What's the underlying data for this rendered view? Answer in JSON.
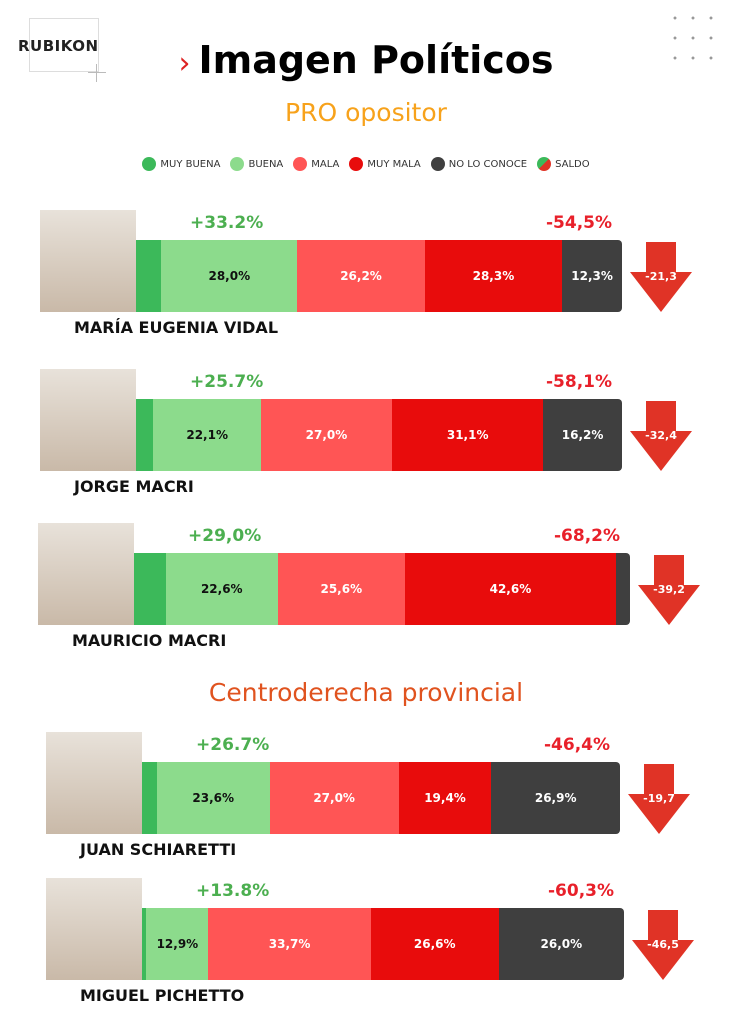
{
  "brand": "RUBIKON",
  "title": "Imagen Políticos",
  "sections": [
    {
      "label": "PRO opositor",
      "color": "#f7a21b"
    },
    {
      "label": "Centroderecha provincial",
      "color": "#e0531f"
    }
  ],
  "legend": [
    {
      "label": "MUY BUENA",
      "color": "#3cb95a"
    },
    {
      "label": "BUENA",
      "color": "#8cdb8c"
    },
    {
      "label": "MALA",
      "color": "#ff5555"
    },
    {
      "label": "MUY MALA",
      "color": "#e80c0c"
    },
    {
      "label": "NO LO CONOCE",
      "color": "#3f3f3f"
    },
    {
      "label": "SALDO",
      "color": "#e03326"
    }
  ],
  "chart_data": {
    "type": "bar",
    "stacked": true,
    "series_names": [
      "MUY BUENA",
      "BUENA",
      "MALA",
      "MUY MALA",
      "NO LO CONOCE"
    ],
    "rows": [
      {
        "name": "MARÍA EUGENIA VIDAL",
        "section": 0,
        "positive": "+33.2%",
        "negative": "-54,5%",
        "saldo": "-21,3",
        "values": [
          5.2,
          28.0,
          26.2,
          28.3,
          12.3
        ],
        "labels": [
          "",
          "28,0%",
          "26,2%",
          "28,3%",
          "12,3%"
        ]
      },
      {
        "name": "JORGE MACRI",
        "section": 0,
        "positive": "+25.7%",
        "negative": "-58,1%",
        "saldo": "-32,4",
        "values": [
          3.6,
          22.1,
          27.0,
          31.1,
          16.2
        ],
        "labels": [
          "",
          "22,1%",
          "27,0%",
          "31,1%",
          "16,2%"
        ]
      },
      {
        "name": "MAURICIO MACRI",
        "section": 0,
        "positive": "+29,0%",
        "negative": "-68,2%",
        "saldo": "-39,2",
        "values": [
          6.4,
          22.6,
          25.6,
          42.6,
          2.8
        ],
        "labels": [
          "",
          "22,6%",
          "25,6%",
          "42,6%",
          ""
        ]
      },
      {
        "name": "JUAN SCHIARETTI",
        "section": 1,
        "positive": "+26.7%",
        "negative": "-46,4%",
        "saldo": "-19,7",
        "values": [
          3.1,
          23.6,
          27.0,
          19.4,
          26.9
        ],
        "labels": [
          "",
          "23,6%",
          "27,0%",
          "19,4%",
          "26,9%"
        ]
      },
      {
        "name": "MIGUEL PICHETTO",
        "section": 1,
        "positive": "+13.8%",
        "negative": "-60,3%",
        "saldo": "-46,5",
        "values": [
          0.9,
          12.9,
          33.7,
          26.6,
          26.0
        ],
        "labels": [
          "",
          "12,9%",
          "33,7%",
          "26,6%",
          "26,0%"
        ]
      }
    ]
  }
}
